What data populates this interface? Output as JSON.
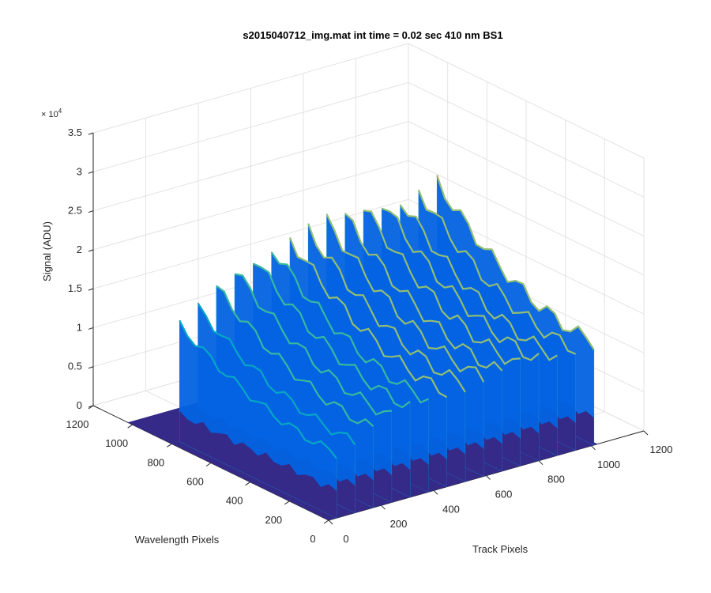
{
  "chart_data": {
    "type": "surface",
    "title": "s2015040712_img.mat int time = 0.02 sec  410 nm BS1",
    "xlabel": "Track Pixels",
    "ylabel": "Wavelength Pixels",
    "zlabel": "Signal (ADU)",
    "z_exponent_label": "× 10",
    "z_exponent_power": "4",
    "xlim": [
      0,
      1200
    ],
    "ylim": [
      0,
      1200
    ],
    "zlim": [
      0,
      35000
    ],
    "x_ticks": [
      "0",
      "200",
      "400",
      "600",
      "800",
      "1000",
      "1200"
    ],
    "y_ticks": [
      "0",
      "200",
      "400",
      "600",
      "800",
      "1000",
      "1200"
    ],
    "z_ticks": [
      "0",
      "0.5",
      "1",
      "1.5",
      "2",
      "2.5",
      "3",
      "3.5"
    ],
    "grid": true,
    "surface_extent": {
      "x": [
        0,
        1024
      ],
      "y": [
        0,
        1024
      ]
    },
    "base_level": 0,
    "peak_columns_x": [
      30,
      100,
      170,
      240,
      310,
      380,
      450,
      520,
      590,
      660,
      730,
      800,
      870,
      940,
      1010
    ],
    "peak_max_z": [
      15000,
      16500,
      18500,
      20000,
      21000,
      21500,
      22000,
      22500,
      23000,
      23000,
      23500,
      23500,
      23000,
      23500,
      24000
    ],
    "peak_y_span": [
      0,
      800
    ],
    "colormap": [
      "#352a87",
      "#0363e1",
      "#1485d4",
      "#06a7c6",
      "#38b99e",
      "#92bf73",
      "#d9ba56",
      "#fcce2e",
      "#f9fb0e"
    ]
  }
}
